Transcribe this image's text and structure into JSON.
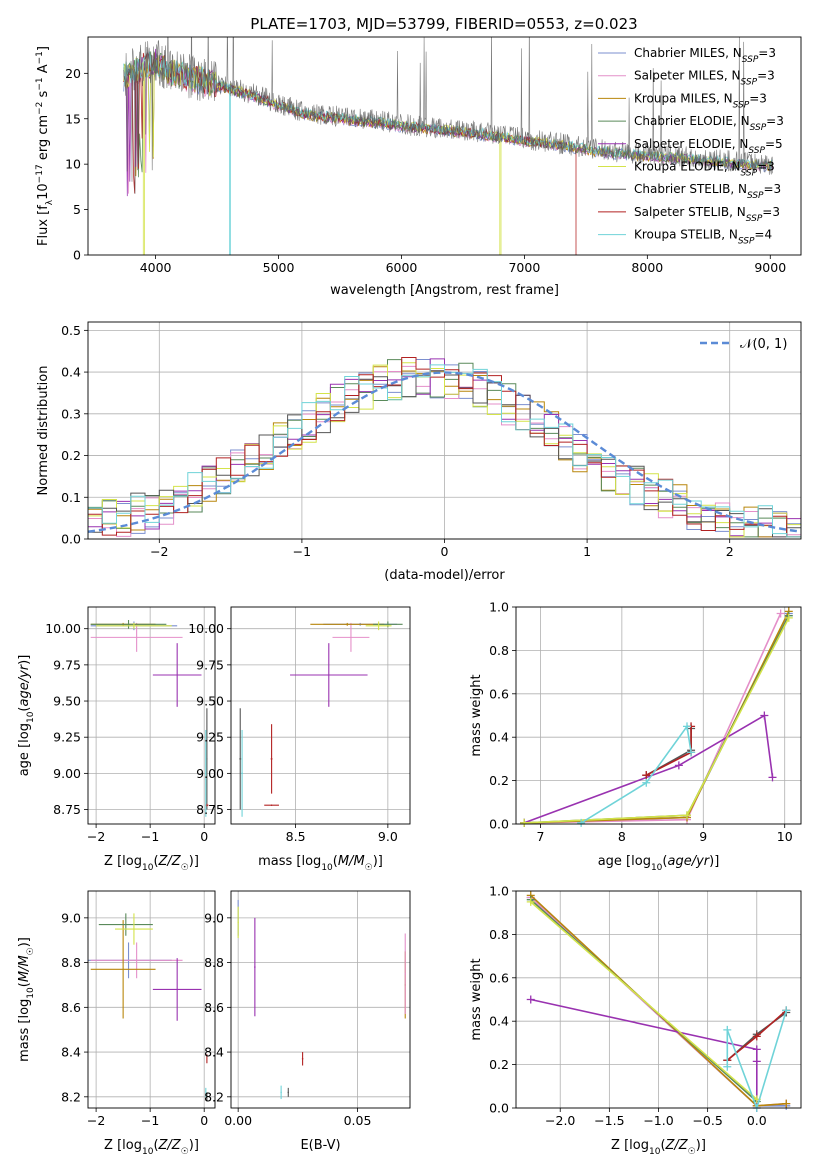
{
  "title": "PLATE=1703, MJD=53799, FIBERID=0553, z=0.023",
  "colors": {
    "Chabrier MILES": "#7b8fcf",
    "Salpeter MILES": "#e48fc9",
    "Kroupa MILES": "#b8860b",
    "Chabrier ELODIE": "#5a8a5a",
    "Salpeter ELODIE": "#9932b0",
    "Kroupa ELODIE": "#d4e34a",
    "Chabrier STELIB": "#555555",
    "Salpeter STELIB": "#b22222",
    "Kroupa STELIB": "#6fd3d8",
    "gauss": "#5b8bd6"
  },
  "chart_data": [
    {
      "id": "spectrum",
      "type": "line",
      "xlabel": "wavelength [Angstrom, rest frame]",
      "ylabel": "Flux [f_λ 10^-17 erg cm^-2 s^-1 A^-1]",
      "xlim": [
        3450,
        9250
      ],
      "ylim": [
        0,
        24
      ],
      "xticks": [
        4000,
        5000,
        6000,
        7000,
        8000,
        9000
      ],
      "yticks": [
        0,
        5,
        10,
        15,
        20
      ],
      "grid": false,
      "legend": "top-right",
      "legend_entries": [
        {
          "label": "Chabrier MILES, N",
          "sub": "SSP",
          "suffix": "=3"
        },
        {
          "label": "Salpeter MILES, N",
          "sub": "SSP",
          "suffix": "=3"
        },
        {
          "label": "Kroupa MILES, N",
          "sub": "SSP",
          "suffix": "=3"
        },
        {
          "label": "Chabrier ELODIE, N",
          "sub": "SSP",
          "suffix": "=3"
        },
        {
          "label": "Salpeter ELODIE, N",
          "sub": "SSP",
          "suffix": "=5"
        },
        {
          "label": "Kroupa ELODIE, N",
          "sub": "SSP",
          "suffix": "=3"
        },
        {
          "label": "Chabrier STELIB, N",
          "sub": "SSP",
          "suffix": "=3"
        },
        {
          "label": "Salpeter STELIB, N",
          "sub": "SSP",
          "suffix": "=3"
        },
        {
          "label": "Kroupa STELIB, N",
          "sub": "SSP",
          "suffix": "=4"
        }
      ],
      "continuum": {
        "x": [
          3750,
          3900,
          4000,
          4100,
          4300,
          4500,
          4800,
          5000,
          5200,
          5500,
          5800,
          6000,
          6300,
          6600,
          7000,
          7300,
          7600,
          8000,
          8300,
          8600,
          9000
        ],
        "y": [
          19.5,
          20.5,
          21.0,
          20.0,
          19.2,
          18.5,
          17.3,
          16.3,
          15.3,
          14.8,
          14.4,
          14.0,
          13.6,
          13.2,
          12.4,
          11.9,
          11.2,
          10.7,
          10.4,
          10.0,
          9.6
        ]
      },
      "dropouts": [
        {
          "series": "Kroupa STELIB",
          "x": 4600
        },
        {
          "series": "Kroupa ELODIE",
          "x": 6800
        },
        {
          "series": "Salpeter STELIB",
          "x": 7420
        },
        {
          "series": "Kroupa ELODIE",
          "x": 3900
        }
      ]
    },
    {
      "id": "residuals",
      "type": "step",
      "xlabel": "(data-model)/error",
      "ylabel": "Normed distribution",
      "xlim": [
        -2.5,
        2.5
      ],
      "ylim": [
        0,
        0.52
      ],
      "xticks": [
        -2,
        -1,
        0,
        1,
        2
      ],
      "yticks": [
        0.0,
        0.1,
        0.2,
        0.3,
        0.4,
        0.5
      ],
      "grid": true,
      "legend": "top-right",
      "gauss_label": "𝒩(0, 1)"
    },
    {
      "id": "age_vs_Z",
      "type": "errorbar",
      "xlabel": "Z [log10(Z/Z☉)]",
      "ylabel": "age [log10(age/yr)]",
      "xlim": [
        -2.15,
        0.2
      ],
      "ylim": [
        8.65,
        10.15
      ],
      "xticks": [
        -2,
        -1,
        0
      ],
      "yticks": [
        8.75,
        9.0,
        9.25,
        9.5,
        9.75,
        10.0
      ],
      "grid": true,
      "points": [
        {
          "series": "Chabrier MILES",
          "x": -1.3,
          "y": 10.02,
          "dx": 0.8,
          "dy": 0.03
        },
        {
          "series": "Salpeter MILES",
          "x": -1.25,
          "y": 9.94,
          "dx": 0.85,
          "dy": 0.1
        },
        {
          "series": "Kroupa MILES",
          "x": -1.5,
          "y": 10.03,
          "dx": 0.6,
          "dy": 0.01
        },
        {
          "series": "Chabrier ELODIE",
          "x": -1.4,
          "y": 10.03,
          "dx": 0.7,
          "dy": 0.03
        },
        {
          "series": "Salpeter ELODIE",
          "x": -0.5,
          "y": 9.68,
          "dx": 0.45,
          "dy": 0.22
        },
        {
          "series": "Kroupa ELODIE",
          "x": -1.3,
          "y": 10.02,
          "dx": 0.7,
          "dy": 0.02
        },
        {
          "series": "Chabrier STELIB",
          "x": 0.05,
          "y": 9.1,
          "dx": 0.01,
          "dy": 0.35
        },
        {
          "series": "Salpeter STELIB",
          "x": 0.05,
          "y": 8.78,
          "dx": 0.03,
          "dy": 0.01
        },
        {
          "series": "Kroupa STELIB",
          "x": 0.03,
          "y": 9.0,
          "dx": 0.01,
          "dy": 0.3
        }
      ]
    },
    {
      "id": "age_vs_mass",
      "type": "errorbar",
      "xlabel": "mass [log10(M/M☉)]",
      "ylabel": "",
      "xlim": [
        8.15,
        9.12
      ],
      "ylim": [
        8.65,
        10.15
      ],
      "xticks": [
        8.5,
        9.0
      ],
      "yticks": [
        8.75,
        9.0,
        9.25,
        9.5,
        9.75,
        10.0
      ],
      "grid": true,
      "points": [
        {
          "series": "Chabrier MILES",
          "x": 8.85,
          "y": 10.03,
          "dx": 0.2,
          "dy": 0.01
        },
        {
          "series": "Salpeter MILES",
          "x": 8.8,
          "y": 9.94,
          "dx": 0.1,
          "dy": 0.1
        },
        {
          "series": "Kroupa MILES",
          "x": 8.78,
          "y": 10.03,
          "dx": 0.2,
          "dy": 0.01
        },
        {
          "series": "Chabrier ELODIE",
          "x": 9.0,
          "y": 10.03,
          "dx": 0.08,
          "dy": 0.02
        },
        {
          "series": "Salpeter ELODIE",
          "x": 8.68,
          "y": 9.68,
          "dx": 0.21,
          "dy": 0.22
        },
        {
          "series": "Kroupa ELODIE",
          "x": 8.95,
          "y": 10.02,
          "dx": 0.07,
          "dy": 0.03
        },
        {
          "series": "Chabrier STELIB",
          "x": 8.2,
          "y": 9.1,
          "dx": 0.005,
          "dy": 0.35
        },
        {
          "series": "Salpeter STELIB",
          "x": 8.37,
          "y": 9.1,
          "dx": 0.005,
          "dy": 0.24
        },
        {
          "series": "Salpeter STELIB",
          "x": 8.37,
          "y": 8.78,
          "dx": 0.04,
          "dy": 0.005
        },
        {
          "series": "Kroupa STELIB",
          "x": 8.21,
          "y": 9.0,
          "dx": 0.005,
          "dy": 0.3
        }
      ]
    },
    {
      "id": "weight_vs_age",
      "type": "line",
      "xlabel": "age [log10(age/yr)]",
      "ylabel": "mass weight",
      "xlim": [
        6.7,
        10.2
      ],
      "ylim": [
        0,
        1.0
      ],
      "xticks": [
        7,
        8,
        9,
        10
      ],
      "yticks": [
        0.0,
        0.2,
        0.4,
        0.6,
        0.8,
        1.0
      ],
      "grid": true,
      "series": [
        {
          "name": "Chabrier MILES",
          "x": [
            6.8,
            8.8,
            10.05
          ],
          "y": [
            0.005,
            0.03,
            0.97
          ]
        },
        {
          "name": "Salpeter MILES",
          "x": [
            6.8,
            8.8,
            9.95
          ],
          "y": [
            0.005,
            0.02,
            0.97
          ]
        },
        {
          "name": "Kroupa MILES",
          "x": [
            6.8,
            8.8,
            10.05
          ],
          "y": [
            0.005,
            0.03,
            0.98
          ]
        },
        {
          "name": "Chabrier ELODIE",
          "x": [
            6.8,
            8.8,
            10.05
          ],
          "y": [
            0.005,
            0.04,
            0.96
          ]
        },
        {
          "name": "Salpeter ELODIE",
          "x": [
            6.8,
            8.7,
            9.75,
            9.85
          ],
          "y": [
            0.005,
            0.27,
            0.5,
            0.215
          ]
        },
        {
          "name": "Kroupa ELODIE",
          "x": [
            6.8,
            8.8,
            10.05
          ],
          "y": [
            0.005,
            0.04,
            0.95
          ]
        },
        {
          "name": "Chabrier STELIB",
          "x": [
            8.3,
            8.85,
            8.85
          ],
          "y": [
            0.225,
            0.34,
            0.44
          ]
        },
        {
          "name": "Salpeter STELIB",
          "x": [
            8.3,
            8.85,
            8.85
          ],
          "y": [
            0.225,
            0.33,
            0.45
          ]
        },
        {
          "name": "Kroupa STELIB",
          "x": [
            7.5,
            8.3,
            8.8,
            8.85
          ],
          "y": [
            0.005,
            0.19,
            0.45,
            0.33
          ]
        }
      ]
    },
    {
      "id": "mass_vs_Z",
      "type": "errorbar",
      "xlabel": "Z [log10(Z/Z☉)]",
      "ylabel": "mass [log10(M/M☉)]",
      "xlim": [
        -2.15,
        0.2
      ],
      "ylim": [
        8.15,
        9.12
      ],
      "xticks": [
        -2,
        -1,
        0
      ],
      "yticks": [
        8.2,
        8.4,
        8.6,
        8.8,
        9.0
      ],
      "grid": true,
      "points": [
        {
          "series": "Chabrier MILES",
          "x": -1.4,
          "y": 8.81,
          "dx": 0.8,
          "dy": 0.08
        },
        {
          "series": "Salpeter MILES",
          "x": -1.25,
          "y": 8.81,
          "dx": 0.85,
          "dy": 0.08
        },
        {
          "series": "Kroupa MILES",
          "x": -1.5,
          "y": 8.77,
          "dx": 0.6,
          "dy": 0.22
        },
        {
          "series": "Chabrier ELODIE",
          "x": -1.45,
          "y": 8.97,
          "dx": 0.5,
          "dy": 0.05
        },
        {
          "series": "Salpeter ELODIE",
          "x": -0.5,
          "y": 8.68,
          "dx": 0.45,
          "dy": 0.14
        },
        {
          "series": "Kroupa ELODIE",
          "x": -1.3,
          "y": 8.95,
          "dx": 0.35,
          "dy": 0.07
        },
        {
          "series": "Chabrier STELIB",
          "x": 0.05,
          "y": 8.2,
          "dx": 0.005,
          "dy": 0.02
        },
        {
          "series": "Salpeter STELIB",
          "x": 0.05,
          "y": 8.37,
          "dx": 0.005,
          "dy": 0.02
        },
        {
          "series": "Kroupa STELIB",
          "x": 0.03,
          "y": 8.22,
          "dx": 0.005,
          "dy": 0.02
        }
      ]
    },
    {
      "id": "mass_vs_EBV",
      "type": "errorbar",
      "xlabel": "E(B-V)",
      "ylabel": "",
      "xlim": [
        -0.003,
        0.072
      ],
      "ylim": [
        8.15,
        9.12
      ],
      "xticks": [
        0.0,
        0.05
      ],
      "yticks": [
        8.2,
        8.4,
        8.6,
        8.8,
        9.0
      ],
      "grid": true,
      "points": [
        {
          "series": "Chabrier MILES",
          "x": 0.0,
          "y": 9.0,
          "dx": 0.0003,
          "dy": 0.08
        },
        {
          "series": "Kroupa MILES",
          "x": 0.07,
          "y": 8.7,
          "dx": 0.0003,
          "dy": 0.15
        },
        {
          "series": "Salpeter MILES",
          "x": 0.07,
          "y": 8.75,
          "dx": 0.0003,
          "dy": 0.18
        },
        {
          "series": "Salpeter ELODIE",
          "x": 0.007,
          "y": 8.78,
          "dx": 0.0003,
          "dy": 0.22
        },
        {
          "series": "Kroupa ELODIE",
          "x": 0.0,
          "y": 8.98,
          "dx": 0.0003,
          "dy": 0.07
        },
        {
          "series": "Chabrier STELIB",
          "x": 0.021,
          "y": 8.22,
          "dx": 0.0003,
          "dy": 0.02
        },
        {
          "series": "Salpeter STELIB",
          "x": 0.027,
          "y": 8.37,
          "dx": 0.0003,
          "dy": 0.03
        },
        {
          "series": "Kroupa STELIB",
          "x": 0.018,
          "y": 8.22,
          "dx": 0.0003,
          "dy": 0.03
        }
      ]
    },
    {
      "id": "weight_vs_Z",
      "type": "line",
      "xlabel": "Z [log10(Z/Z☉)]",
      "ylabel": "mass weight",
      "xlim": [
        -2.45,
        0.45
      ],
      "ylim": [
        0,
        1.0
      ],
      "xticks": [
        -2.0,
        -1.5,
        -1.0,
        -0.5,
        0.0
      ],
      "yticks": [
        0.0,
        0.2,
        0.4,
        0.6,
        0.8,
        1.0
      ],
      "grid": true,
      "series": [
        {
          "name": "Chabrier MILES",
          "x": [
            -2.3,
            0.0,
            0.3
          ],
          "y": [
            0.97,
            0.01,
            0.01
          ]
        },
        {
          "name": "Salpeter MILES",
          "x": [
            -2.3,
            0.0,
            0.3
          ],
          "y": [
            0.97,
            0.01,
            0.02
          ]
        },
        {
          "name": "Kroupa MILES",
          "x": [
            -2.3,
            0.0,
            0.3
          ],
          "y": [
            0.98,
            0.01,
            0.02
          ]
        },
        {
          "name": "Chabrier ELODIE",
          "x": [
            -2.3,
            0.0
          ],
          "y": [
            0.96,
            0.03
          ]
        },
        {
          "name": "Salpeter ELODIE",
          "x": [
            -2.3,
            0.0,
            0.0,
            0.0
          ],
          "y": [
            0.5,
            0.27,
            0.0,
            0.215
          ]
        },
        {
          "name": "Kroupa ELODIE",
          "x": [
            -2.3,
            0.0
          ],
          "y": [
            0.95,
            0.04
          ]
        },
        {
          "name": "Chabrier STELIB",
          "x": [
            -0.3,
            0.0,
            0.3
          ],
          "y": [
            0.22,
            0.34,
            0.44
          ]
        },
        {
          "name": "Salpeter STELIB",
          "x": [
            -0.3,
            0.0,
            0.3
          ],
          "y": [
            0.22,
            0.33,
            0.45
          ]
        },
        {
          "name": "Kroupa STELIB",
          "x": [
            -0.3,
            -0.3,
            0.0,
            0.3
          ],
          "y": [
            0.19,
            0.36,
            0.0,
            0.45
          ]
        }
      ]
    }
  ]
}
